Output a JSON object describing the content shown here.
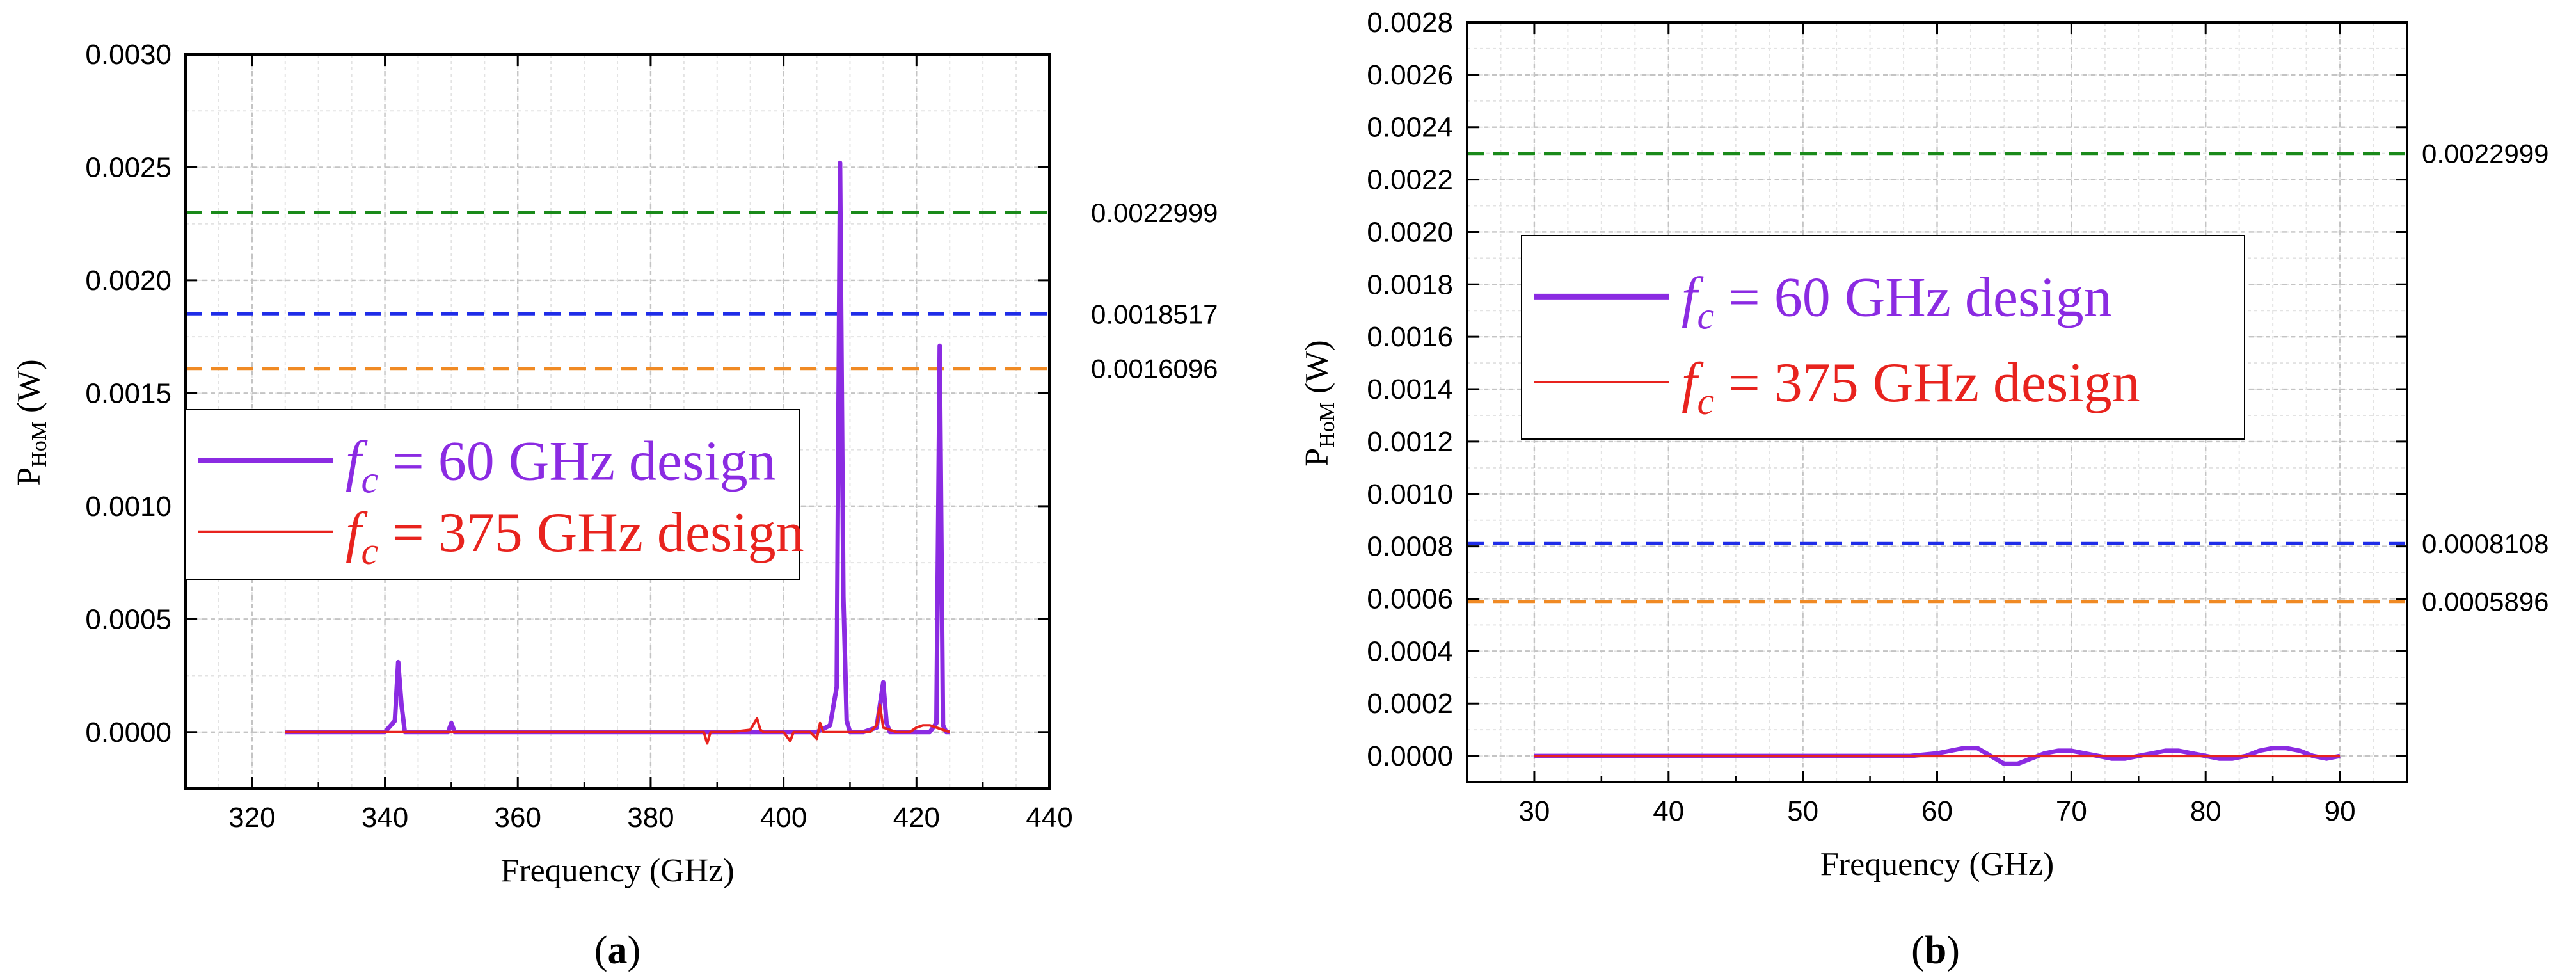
{
  "chart_data": [
    {
      "type": "line",
      "panel_label": "a",
      "xlabel": "Frequency (GHz)",
      "ylabel": "P",
      "ylabel_sub": "HoM",
      "ylabel_unit": " (W)",
      "xlim": [
        310,
        440
      ],
      "ylim": [
        -0.00025,
        0.003
      ],
      "xticks": [
        320,
        340,
        360,
        380,
        400,
        420,
        440
      ],
      "yticks": [
        0.0,
        0.0005,
        0.001,
        0.0015,
        0.002,
        0.0025,
        0.003
      ],
      "ytick_labels": [
        "0.0000",
        "0.0005",
        "0.0010",
        "0.0015",
        "0.0020",
        "0.0025",
        "0.0030"
      ],
      "grid": true,
      "legend_position": "center-left",
      "reference_lines": [
        {
          "value": 0.0022999,
          "label": "0.0022999",
          "color": "#1a8a1a"
        },
        {
          "value": 0.0018517,
          "label": "0.0018517",
          "color": "#1f2de8"
        },
        {
          "value": 0.0016096,
          "label": "0.0016096",
          "color": "#f08a24"
        }
      ],
      "series": [
        {
          "name_symbol": "f",
          "name_sub": "c",
          "name_rest": " = 60 GHz design",
          "color": "#8b2be2",
          "x": [
            325,
            330,
            335,
            338,
            340,
            341.5,
            342,
            342.5,
            343,
            344,
            346,
            349.5,
            350,
            350.5,
            352,
            356,
            360,
            370,
            380,
            390,
            400,
            405,
            407,
            408,
            408.5,
            409,
            409.5,
            410,
            412,
            414,
            415,
            415.5,
            416,
            418,
            420,
            422,
            423,
            423.5,
            424,
            424.5,
            425
          ],
          "y": [
            0.0,
            0.0,
            0.0,
            0.0,
            0.0,
            5e-05,
            0.00031,
            0.00012,
            0.0,
            0.0,
            0.0,
            0.0,
            4e-05,
            0.0,
            0.0,
            0.0,
            0.0,
            0.0,
            0.0,
            0.0,
            0.0,
            0.0,
            3e-05,
            0.0002,
            0.00252,
            0.0006,
            5e-05,
            0.0,
            0.0,
            2e-05,
            0.00022,
            4e-05,
            0.0,
            0.0,
            0.0,
            0.0,
            4e-05,
            0.00171,
            3e-05,
            0.0,
            0.0
          ]
        },
        {
          "name_symbol": "f",
          "name_sub": "c",
          "name_rest": " = 375 GHz design",
          "color": "#e8231e",
          "x": [
            325,
            335,
            345,
            355,
            365,
            375,
            385,
            388,
            388.5,
            389,
            392,
            395,
            396,
            396.5,
            397,
            400,
            401,
            401.5,
            402,
            404,
            405,
            405.5,
            406,
            408,
            410,
            413,
            414,
            414.5,
            415,
            417,
            419,
            420,
            421,
            422,
            423,
            424,
            425
          ],
          "y": [
            0.0,
            0.0,
            0.0,
            0.0,
            0.0,
            0.0,
            0.0,
            0.0,
            -5e-05,
            0.0,
            0.0,
            1e-05,
            6e-05,
            1e-05,
            0.0,
            0.0,
            -4e-05,
            0.0,
            0.0,
            0.0,
            -3e-05,
            4e-05,
            0.0,
            0.0,
            0.0,
            0.0,
            3e-05,
            0.00012,
            2e-05,
            0.0,
            0.0,
            2e-05,
            3e-05,
            3e-05,
            2e-05,
            1e-05,
            0.0
          ]
        }
      ]
    },
    {
      "type": "line",
      "panel_label": "b",
      "xlabel": "Frequency (GHz)",
      "ylabel": "P",
      "ylabel_sub": "HoM",
      "ylabel_unit": " (W)",
      "xlim": [
        25,
        95
      ],
      "ylim": [
        -0.0001,
        0.0028
      ],
      "xticks": [
        30,
        40,
        50,
        60,
        70,
        80,
        90
      ],
      "yticks": [
        0.0,
        0.0002,
        0.0004,
        0.0006,
        0.0008,
        0.001,
        0.0012,
        0.0014,
        0.0016,
        0.0018,
        0.002,
        0.0022,
        0.0024,
        0.0026,
        0.0028
      ],
      "ytick_labels": [
        "0.0000",
        "0.0002",
        "0.0004",
        "0.0006",
        "0.0008",
        "0.0010",
        "0.0012",
        "0.0014",
        "0.0016",
        "0.0018",
        "0.0020",
        "0.0022",
        "0.0024",
        "0.0026",
        "0.0028"
      ],
      "grid": true,
      "legend_position": "upper-left",
      "reference_lines": [
        {
          "value": 0.0022999,
          "label": "0.0022999",
          "color": "#1a8a1a"
        },
        {
          "value": 0.0008108,
          "label": "0.0008108",
          "color": "#1f2de8"
        },
        {
          "value": 0.0005896,
          "label": "0.0005896",
          "color": "#f08a24"
        }
      ],
      "series": [
        {
          "name_symbol": "f",
          "name_sub": "c",
          "name_rest": " = 60 GHz design",
          "color": "#8b2be2",
          "x": [
            30,
            35,
            40,
            45,
            50,
            55,
            58,
            60,
            61,
            62,
            63,
            64,
            65,
            66,
            67,
            68,
            69,
            70,
            71,
            72,
            73,
            74,
            75,
            76,
            77,
            78,
            79,
            80,
            81,
            82,
            83,
            84,
            85,
            86,
            87,
            88,
            89,
            90
          ],
          "y": [
            0.0,
            0.0,
            0.0,
            0.0,
            0.0,
            0.0,
            0.0,
            1e-05,
            2e-05,
            3e-05,
            3e-05,
            0.0,
            -3e-05,
            -3e-05,
            -1e-05,
            1e-05,
            2e-05,
            2e-05,
            1e-05,
            0.0,
            -1e-05,
            -1e-05,
            0.0,
            1e-05,
            2e-05,
            2e-05,
            1e-05,
            0.0,
            -1e-05,
            -1e-05,
            0.0,
            2e-05,
            3e-05,
            3e-05,
            2e-05,
            0.0,
            -1e-05,
            0.0
          ]
        },
        {
          "name_symbol": "f",
          "name_sub": "c",
          "name_rest": " = 375 GHz design",
          "color": "#e8231e",
          "x": [
            30,
            40,
            50,
            60,
            70,
            80,
            90
          ],
          "y": [
            0.0,
            0.0,
            0.0,
            0.0,
            0.0,
            0.0,
            0.0
          ]
        }
      ]
    }
  ]
}
